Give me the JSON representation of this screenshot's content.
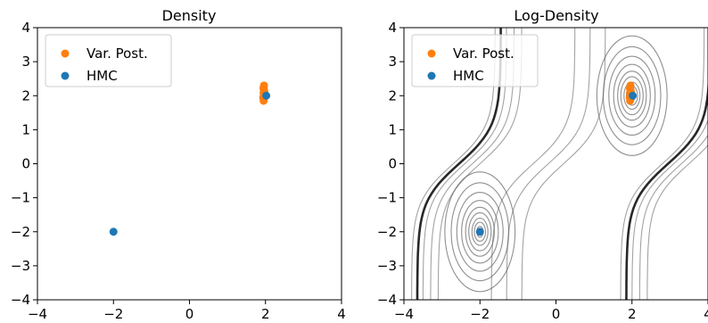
{
  "chart_data": [
    {
      "type": "scatter",
      "title": "Density",
      "xlabel": "",
      "ylabel": "",
      "xlim": [
        -4,
        4
      ],
      "ylim": [
        -4,
        4
      ],
      "x_ticks": [
        -4,
        -2,
        0,
        2,
        4
      ],
      "y_ticks": [
        -4,
        -3,
        -2,
        -1,
        0,
        1,
        2,
        3,
        4
      ],
      "x_tick_labels": [
        "−4",
        "−2",
        "0",
        "2",
        "4"
      ],
      "y_tick_labels": [
        "−4",
        "−3",
        "−2",
        "−1",
        "0",
        "1",
        "2",
        "3",
        "4"
      ],
      "grid": false,
      "legend_position": "top-left",
      "series": [
        {
          "name": "Var. Post.",
          "color": "#ff7f0e",
          "points": [
            [
              1.95,
              1.85
            ],
            [
              1.95,
              1.92
            ],
            [
              1.96,
              2.0
            ],
            [
              1.95,
              2.08
            ],
            [
              1.96,
              2.16
            ],
            [
              1.95,
              2.24
            ],
            [
              1.96,
              2.3
            ],
            [
              1.94,
              1.95
            ],
            [
              1.97,
              2.12
            ],
            [
              1.95,
              2.2
            ]
          ]
        },
        {
          "name": "HMC",
          "color": "#1f77b4",
          "points": [
            [
              2.02,
              2.0
            ],
            [
              -2.0,
              -2.0
            ]
          ]
        }
      ]
    },
    {
      "type": "scatter",
      "title": "Log-Density",
      "xlabel": "",
      "ylabel": "",
      "xlim": [
        -4,
        4
      ],
      "ylim": [
        -4,
        4
      ],
      "x_ticks": [
        -4,
        -2,
        0,
        2,
        4
      ],
      "y_ticks": [
        -4,
        -3,
        -2,
        -1,
        0,
        1,
        2,
        3,
        4
      ],
      "x_tick_labels": [
        "−4",
        "−2",
        "0",
        "2",
        "4"
      ],
      "y_tick_labels": [
        "−4",
        "−3",
        "−2",
        "−1",
        "0",
        "1",
        "2",
        "3",
        "4"
      ],
      "grid": false,
      "legend_position": "top-left",
      "contour_lines": true,
      "series": [
        {
          "name": "Var. Post.",
          "color": "#ff7f0e",
          "points": [
            [
              1.95,
              1.85
            ],
            [
              1.95,
              1.92
            ],
            [
              1.96,
              2.0
            ],
            [
              1.95,
              2.08
            ],
            [
              1.96,
              2.16
            ],
            [
              1.95,
              2.24
            ],
            [
              1.96,
              2.3
            ],
            [
              1.94,
              1.95
            ],
            [
              1.97,
              2.12
            ],
            [
              1.95,
              2.2
            ]
          ]
        },
        {
          "name": "HMC",
          "color": "#1f77b4",
          "points": [
            [
              2.02,
              2.0
            ],
            [
              -2.0,
              -2.0
            ]
          ]
        }
      ]
    }
  ]
}
